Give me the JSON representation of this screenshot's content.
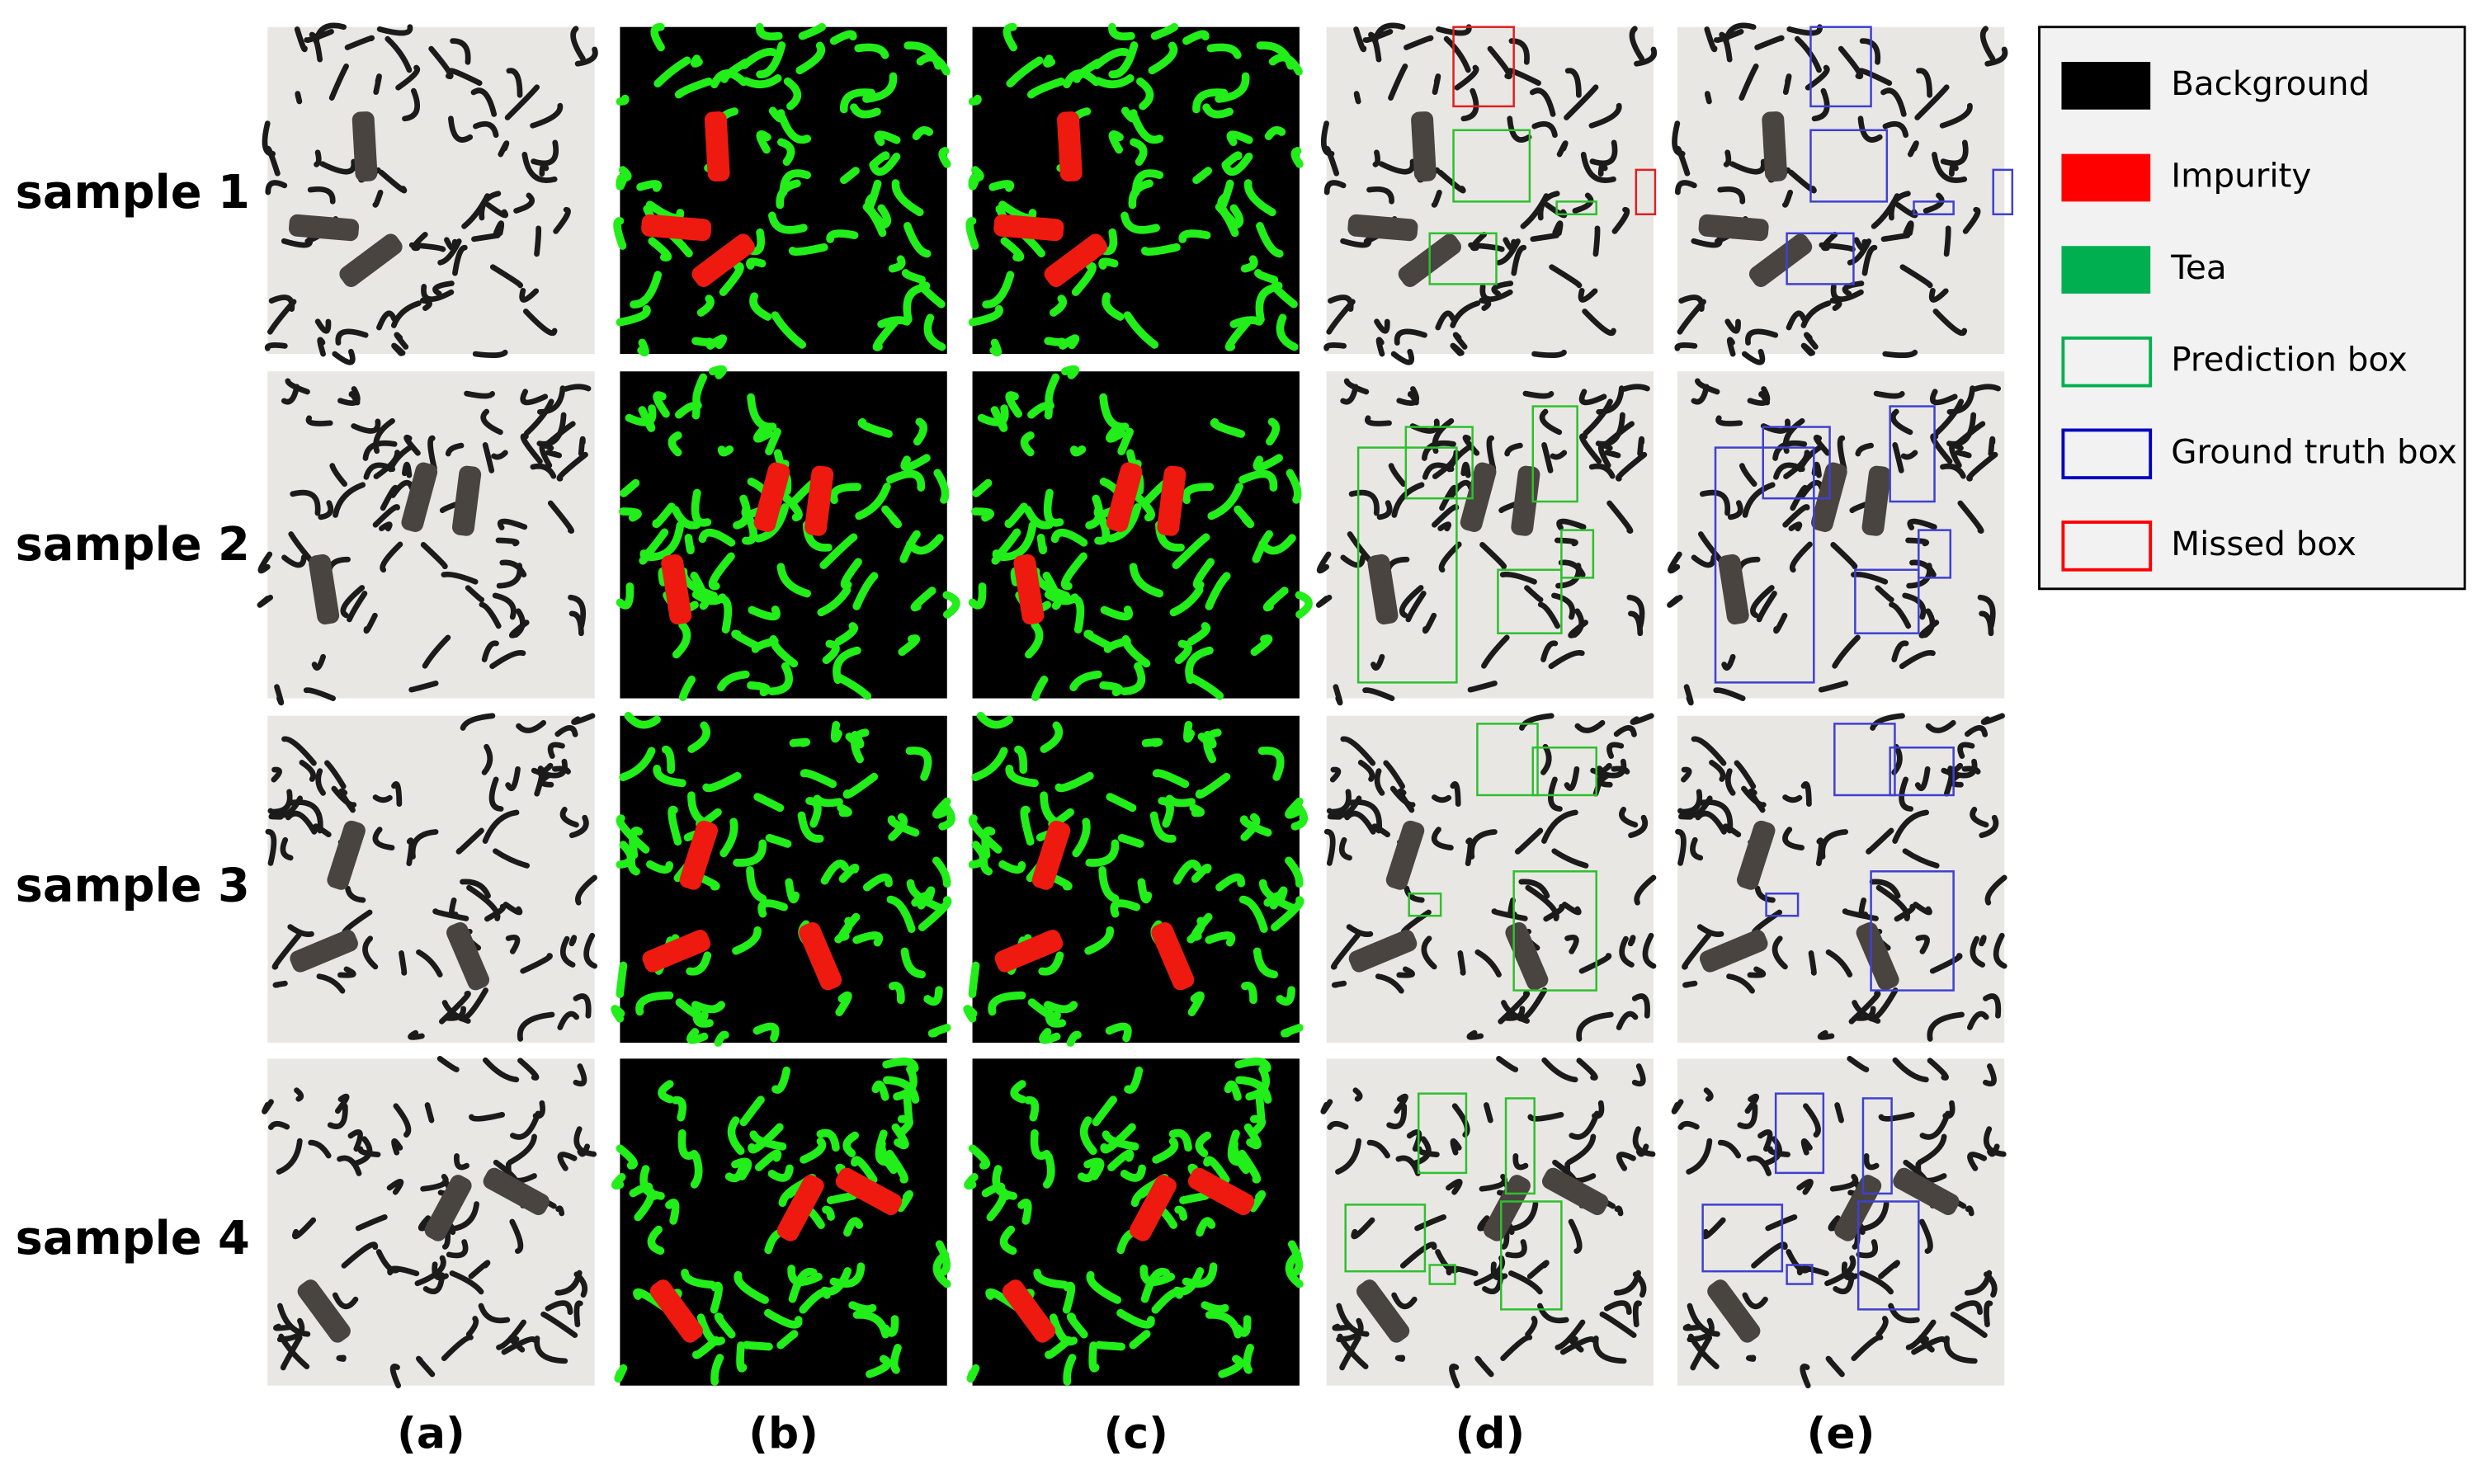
{
  "rows": [
    "sample 1",
    "sample 2",
    "sample 3",
    "sample 4"
  ],
  "columns": [
    "(a)",
    "(b)",
    "(c)",
    "(d)",
    "(e)"
  ],
  "legend": [
    {
      "label": "Background",
      "color": "#000000",
      "kind": "fill"
    },
    {
      "label": "Impurity",
      "color": "#ff0000",
      "kind": "fill"
    },
    {
      "label": "Tea",
      "color": "#00b050",
      "kind": "fill"
    },
    {
      "label": "Prediction box",
      "color": "#00b050",
      "kind": "box"
    },
    {
      "label": "Ground truth box",
      "color": "#0000c0",
      "kind": "box"
    },
    {
      "label": "Missed box",
      "color": "#ff0000",
      "kind": "box"
    }
  ]
}
